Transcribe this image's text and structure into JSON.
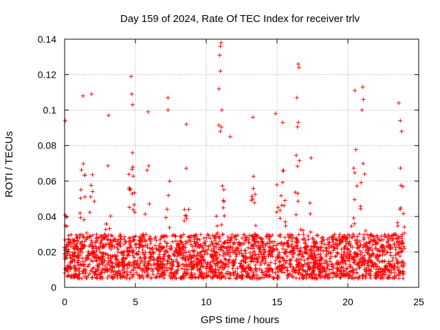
{
  "chart_data": {
    "type": "scatter",
    "title": "Day 159 of 2024, Rate Of TEC Index for receiver trlv",
    "xlabel": "GPS time / hours",
    "ylabel": "ROTI / TECUs",
    "xlim": [
      0,
      25
    ],
    "ylim": [
      0,
      0.14
    ],
    "grid": true,
    "x_ticks": [
      0,
      5,
      10,
      15,
      20,
      25
    ],
    "y_ticks": [
      0,
      0.02,
      0.04,
      0.06,
      0.08,
      0.1,
      0.12,
      0.14
    ],
    "x_tick_labels": [
      "0",
      "5",
      "10",
      "15",
      "20",
      "25"
    ],
    "y_tick_labels": [
      "0",
      "0.02",
      "0.04",
      "0.06",
      "0.08",
      "0.1",
      "0.12",
      "0.14"
    ],
    "marker": "+",
    "color": "#ff0000",
    "data_extent_hours": [
      0,
      24
    ],
    "baseline_band": [
      0.005,
      0.03
    ],
    "series": [
      {
        "name": "ROTI",
        "notable_points": [
          {
            "x": 0.05,
            "y": 0.094
          },
          {
            "x": 1.3,
            "y": 0.108
          },
          {
            "x": 1.9,
            "y": 0.109
          },
          {
            "x": 3.1,
            "y": 0.097
          },
          {
            "x": 4.7,
            "y": 0.119
          },
          {
            "x": 4.75,
            "y": 0.109
          },
          {
            "x": 4.8,
            "y": 0.103
          },
          {
            "x": 5.9,
            "y": 0.099
          },
          {
            "x": 7.3,
            "y": 0.107
          },
          {
            "x": 7.3,
            "y": 0.1
          },
          {
            "x": 8.6,
            "y": 0.092
          },
          {
            "x": 11.05,
            "y": 0.138
          },
          {
            "x": 11.0,
            "y": 0.136
          },
          {
            "x": 10.95,
            "y": 0.131
          },
          {
            "x": 11.0,
            "y": 0.122
          },
          {
            "x": 10.9,
            "y": 0.112
          },
          {
            "x": 11.1,
            "y": 0.1
          },
          {
            "x": 11.0,
            "y": 0.088
          },
          {
            "x": 11.7,
            "y": 0.085
          },
          {
            "x": 13.3,
            "y": 0.096
          },
          {
            "x": 14.9,
            "y": 0.098
          },
          {
            "x": 15.4,
            "y": 0.093
          },
          {
            "x": 16.5,
            "y": 0.126
          },
          {
            "x": 16.55,
            "y": 0.124
          },
          {
            "x": 16.4,
            "y": 0.107
          },
          {
            "x": 16.5,
            "y": 0.093
          },
          {
            "x": 17.4,
            "y": 0.073
          },
          {
            "x": 20.5,
            "y": 0.111
          },
          {
            "x": 21.05,
            "y": 0.113
          },
          {
            "x": 21.1,
            "y": 0.106
          },
          {
            "x": 21.0,
            "y": 0.1
          },
          {
            "x": 23.6,
            "y": 0.104
          },
          {
            "x": 23.7,
            "y": 0.094
          },
          {
            "x": 23.8,
            "y": 0.088
          }
        ]
      }
    ]
  }
}
